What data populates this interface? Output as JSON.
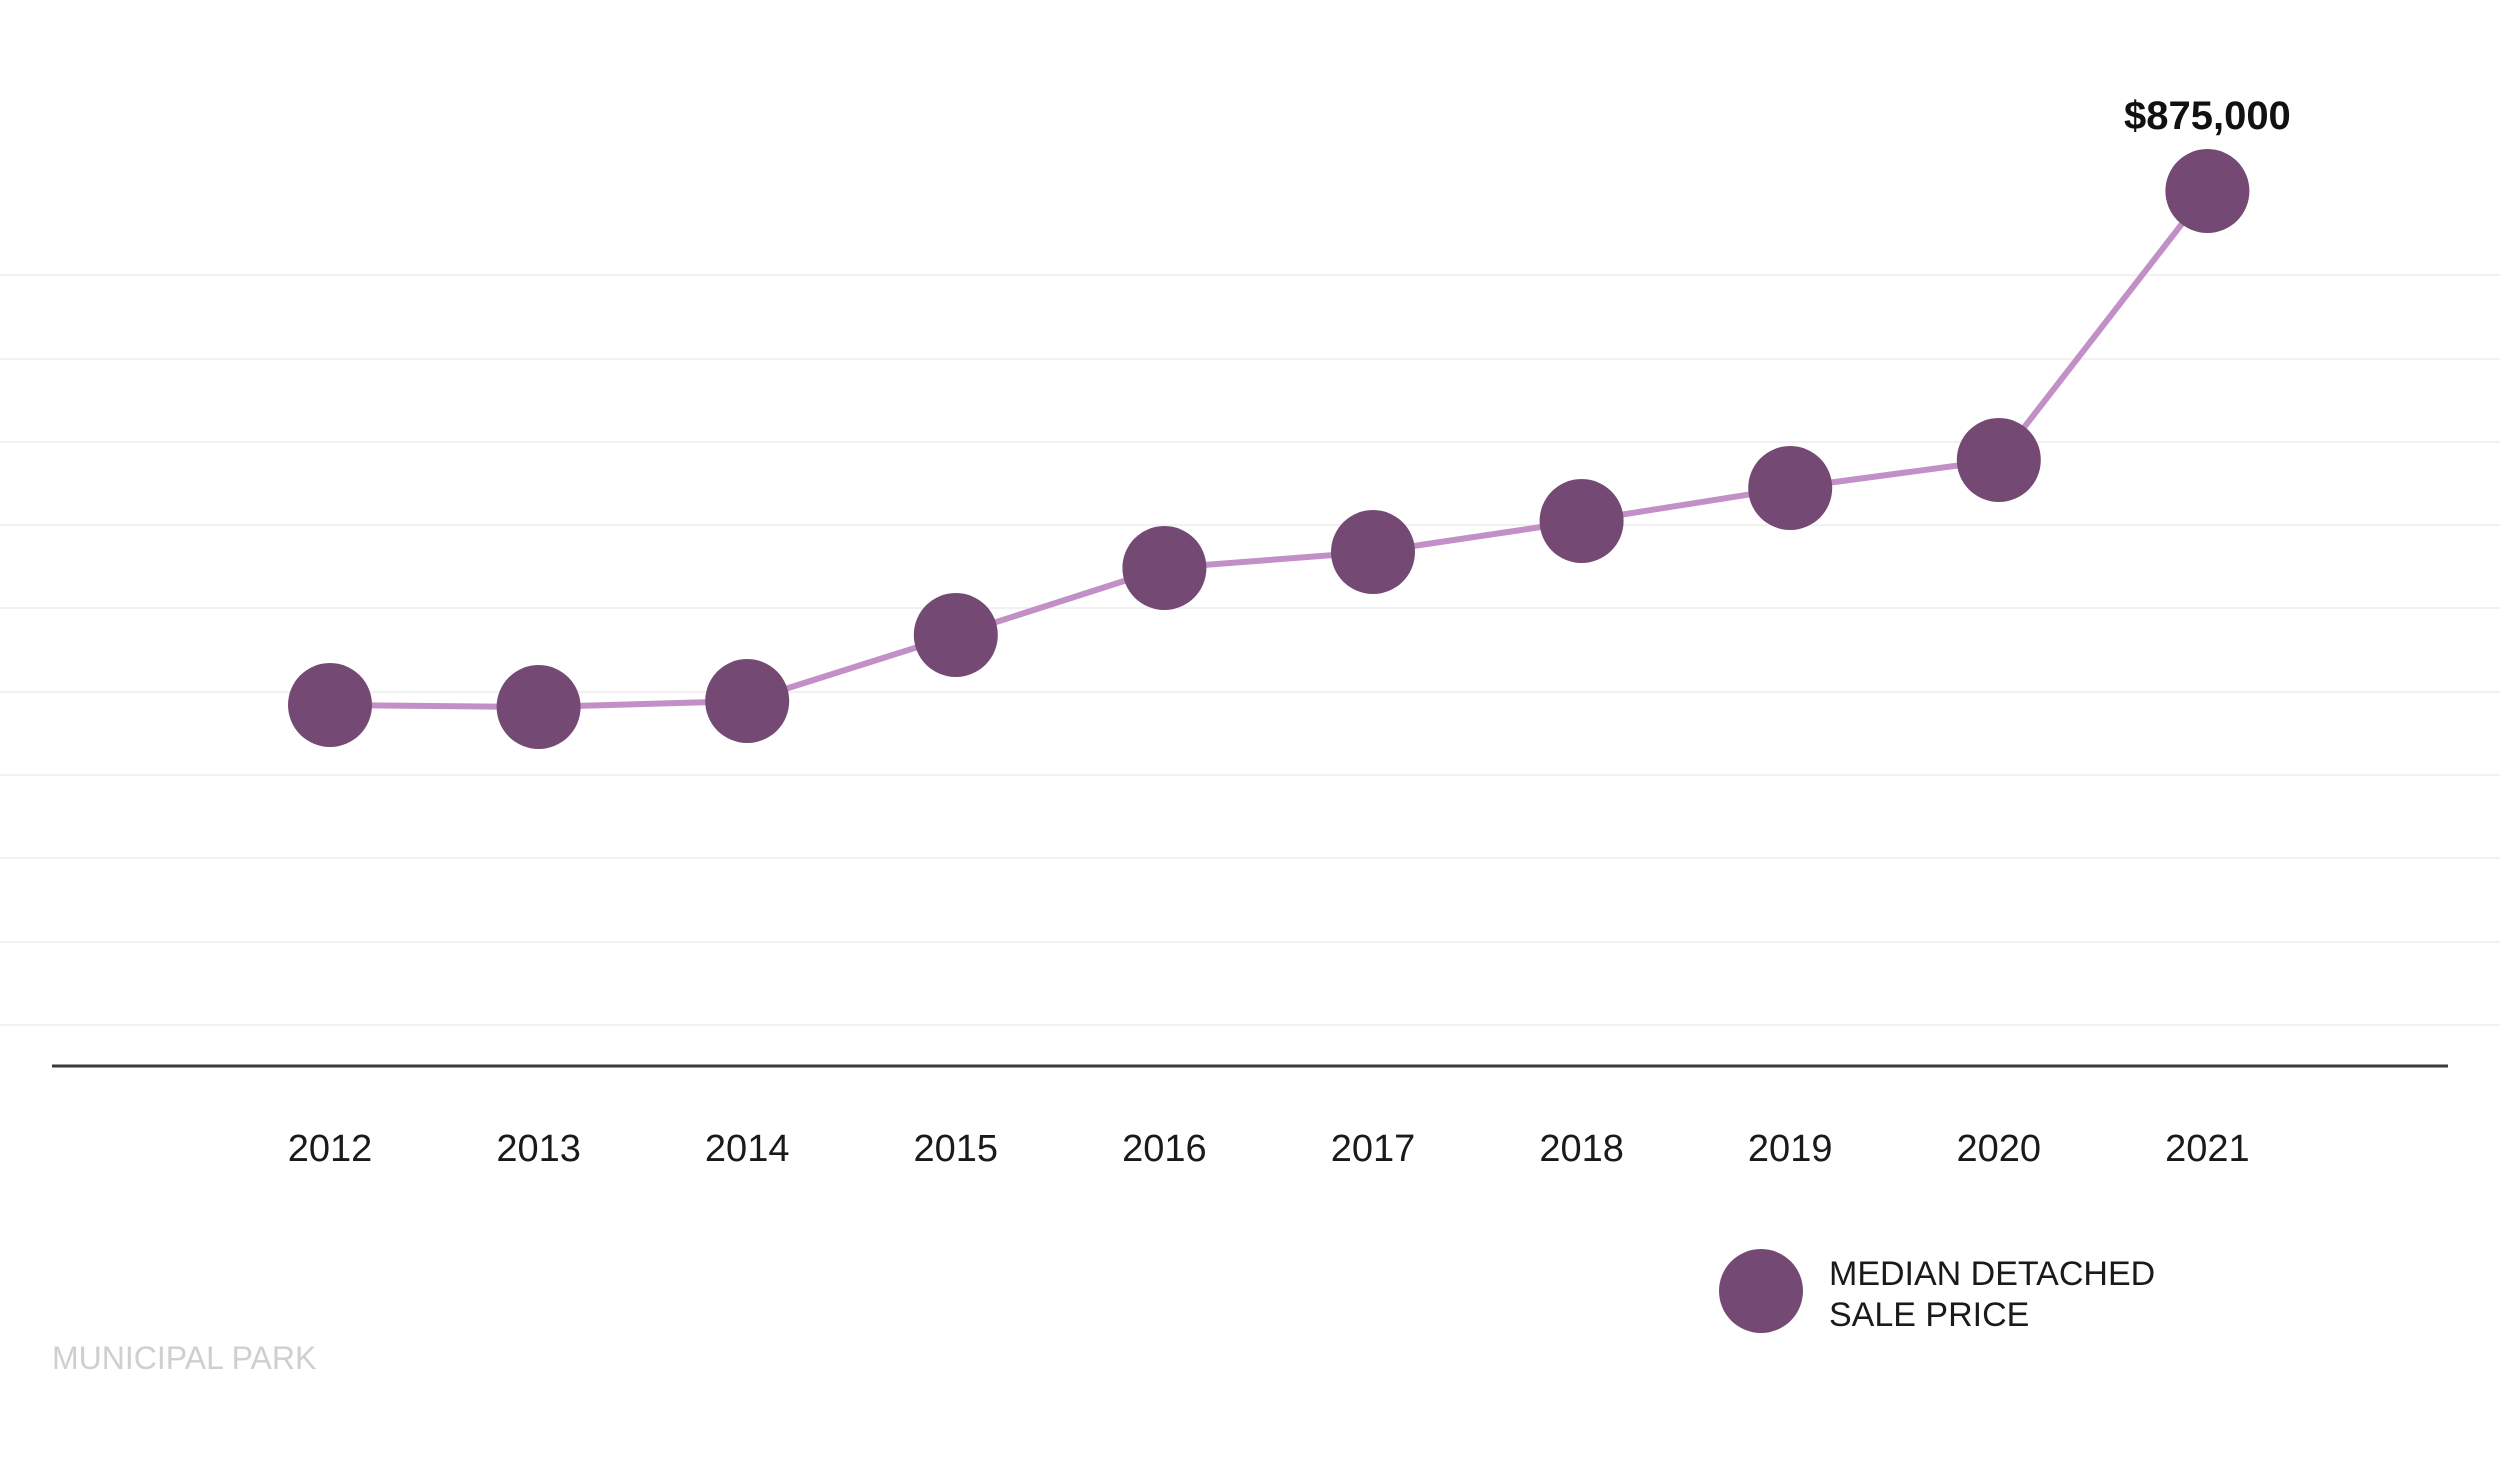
{
  "chart_data": {
    "type": "line",
    "categories": [
      "2012",
      "2013",
      "2014",
      "2015",
      "2016",
      "2017",
      "2018",
      "2019",
      "2020",
      "2021"
    ],
    "series": [
      {
        "name": "MEDIAN DETACHED SALE PRICE",
        "legend_lines": [
          "MEDIAN DETACHED",
          "SALE PRICE"
        ],
        "values": [
          361000,
          359000,
          365000,
          431000,
          498000,
          514000,
          545000,
          578000,
          606000,
          875000
        ],
        "line_color": "#c290c6",
        "marker_color": "#744a74"
      }
    ],
    "data_labels": [
      {
        "category": "2021",
        "text": "$875,000"
      }
    ],
    "title": "",
    "xlabel": "",
    "ylabel": "",
    "ylim": [
      0,
      958000
    ],
    "grid": true,
    "legend_position": "bottom-right",
    "watermark": "MUNICIPAL PARK"
  }
}
